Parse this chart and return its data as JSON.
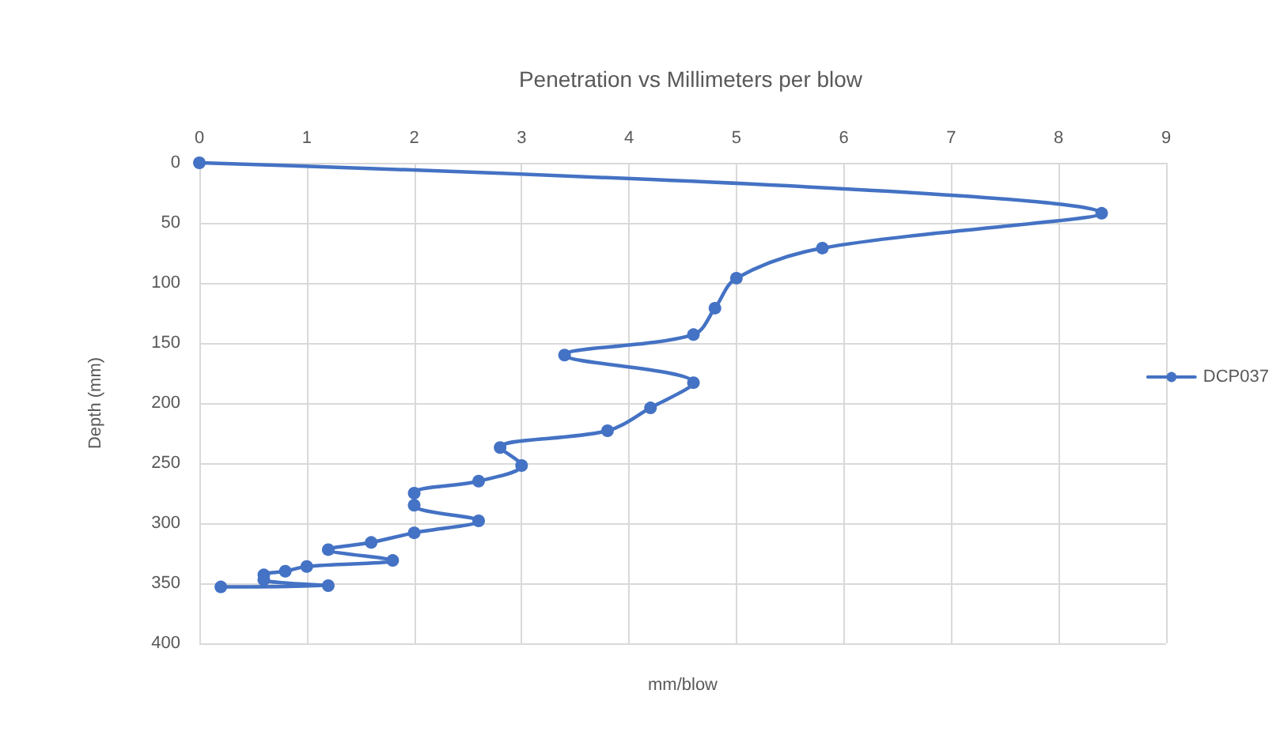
{
  "chart_data": {
    "type": "line",
    "title": "Penetration vs Millimeters per blow",
    "xlabel": "mm/blow",
    "ylabel": "Depth (mm)",
    "x": [
      0,
      8.4,
      5.8,
      5.0,
      4.8,
      4.6,
      3.4,
      4.6,
      4.2,
      3.8,
      2.8,
      3.0,
      2.6,
      2.0,
      2.0,
      2.6,
      2.0,
      1.6,
      1.2,
      1.8,
      1.0,
      0.8,
      0.6,
      0.6,
      1.2,
      0.2
    ],
    "series": [
      {
        "name": "DCP037",
        "color": "#4472c4",
        "values": [
          0,
          42,
          71,
          96,
          121,
          143,
          160,
          183,
          204,
          223,
          237,
          252,
          265,
          275,
          285,
          298,
          308,
          316,
          322,
          331,
          336,
          340,
          343,
          347,
          352,
          353
        ]
      }
    ],
    "xlim": [
      0,
      9
    ],
    "xticks": [
      0,
      1,
      2,
      3,
      4,
      5,
      6,
      7,
      8,
      9
    ],
    "ylim": [
      400,
      0
    ],
    "yticks": [
      0,
      50,
      100,
      150,
      200,
      250,
      300,
      350,
      400
    ],
    "grid": true,
    "legend": "right",
    "marker": "circle",
    "line_style": "solid"
  }
}
